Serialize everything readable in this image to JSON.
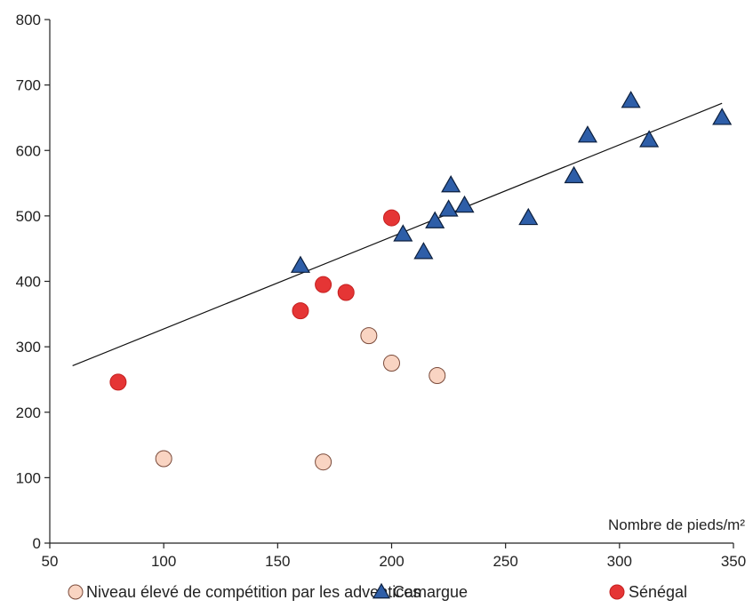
{
  "chart_data": {
    "type": "scatter",
    "title": "",
    "xlabel": "Nombre de pieds/m²",
    "ylabel": "",
    "xlim": [
      50,
      350
    ],
    "ylim": [
      0,
      800
    ],
    "xticks": [
      50,
      100,
      150,
      200,
      250,
      300,
      350
    ],
    "yticks": [
      0,
      100,
      200,
      300,
      400,
      500,
      600,
      700,
      800
    ],
    "grid": false,
    "legend_position": "bottom",
    "series": [
      {
        "name": "Niveau élevé de compétition par les adventices",
        "marker": "circle",
        "color": "#f9d4c2",
        "points": [
          {
            "x": 100,
            "y": 129
          },
          {
            "x": 170,
            "y": 124
          },
          {
            "x": 190,
            "y": 317
          },
          {
            "x": 200,
            "y": 275
          },
          {
            "x": 220,
            "y": 256
          }
        ]
      },
      {
        "name": "Camargue",
        "marker": "triangle",
        "color": "#2e5ea8",
        "points": [
          {
            "x": 160,
            "y": 424
          },
          {
            "x": 205,
            "y": 472
          },
          {
            "x": 214,
            "y": 445
          },
          {
            "x": 219,
            "y": 492
          },
          {
            "x": 225,
            "y": 510
          },
          {
            "x": 226,
            "y": 547
          },
          {
            "x": 232,
            "y": 516
          },
          {
            "x": 260,
            "y": 497
          },
          {
            "x": 280,
            "y": 561
          },
          {
            "x": 286,
            "y": 623
          },
          {
            "x": 305,
            "y": 676
          },
          {
            "x": 313,
            "y": 616
          },
          {
            "x": 345,
            "y": 650
          }
        ]
      },
      {
        "name": "Sénégal",
        "marker": "circle",
        "color": "#e53535",
        "points": [
          {
            "x": 80,
            "y": 246
          },
          {
            "x": 160,
            "y": 355
          },
          {
            "x": 170,
            "y": 395
          },
          {
            "x": 180,
            "y": 383
          },
          {
            "x": 200,
            "y": 497
          }
        ]
      }
    ],
    "trendline": {
      "x": [
        60,
        345
      ],
      "y": [
        271,
        672
      ],
      "color": "#111111"
    }
  }
}
